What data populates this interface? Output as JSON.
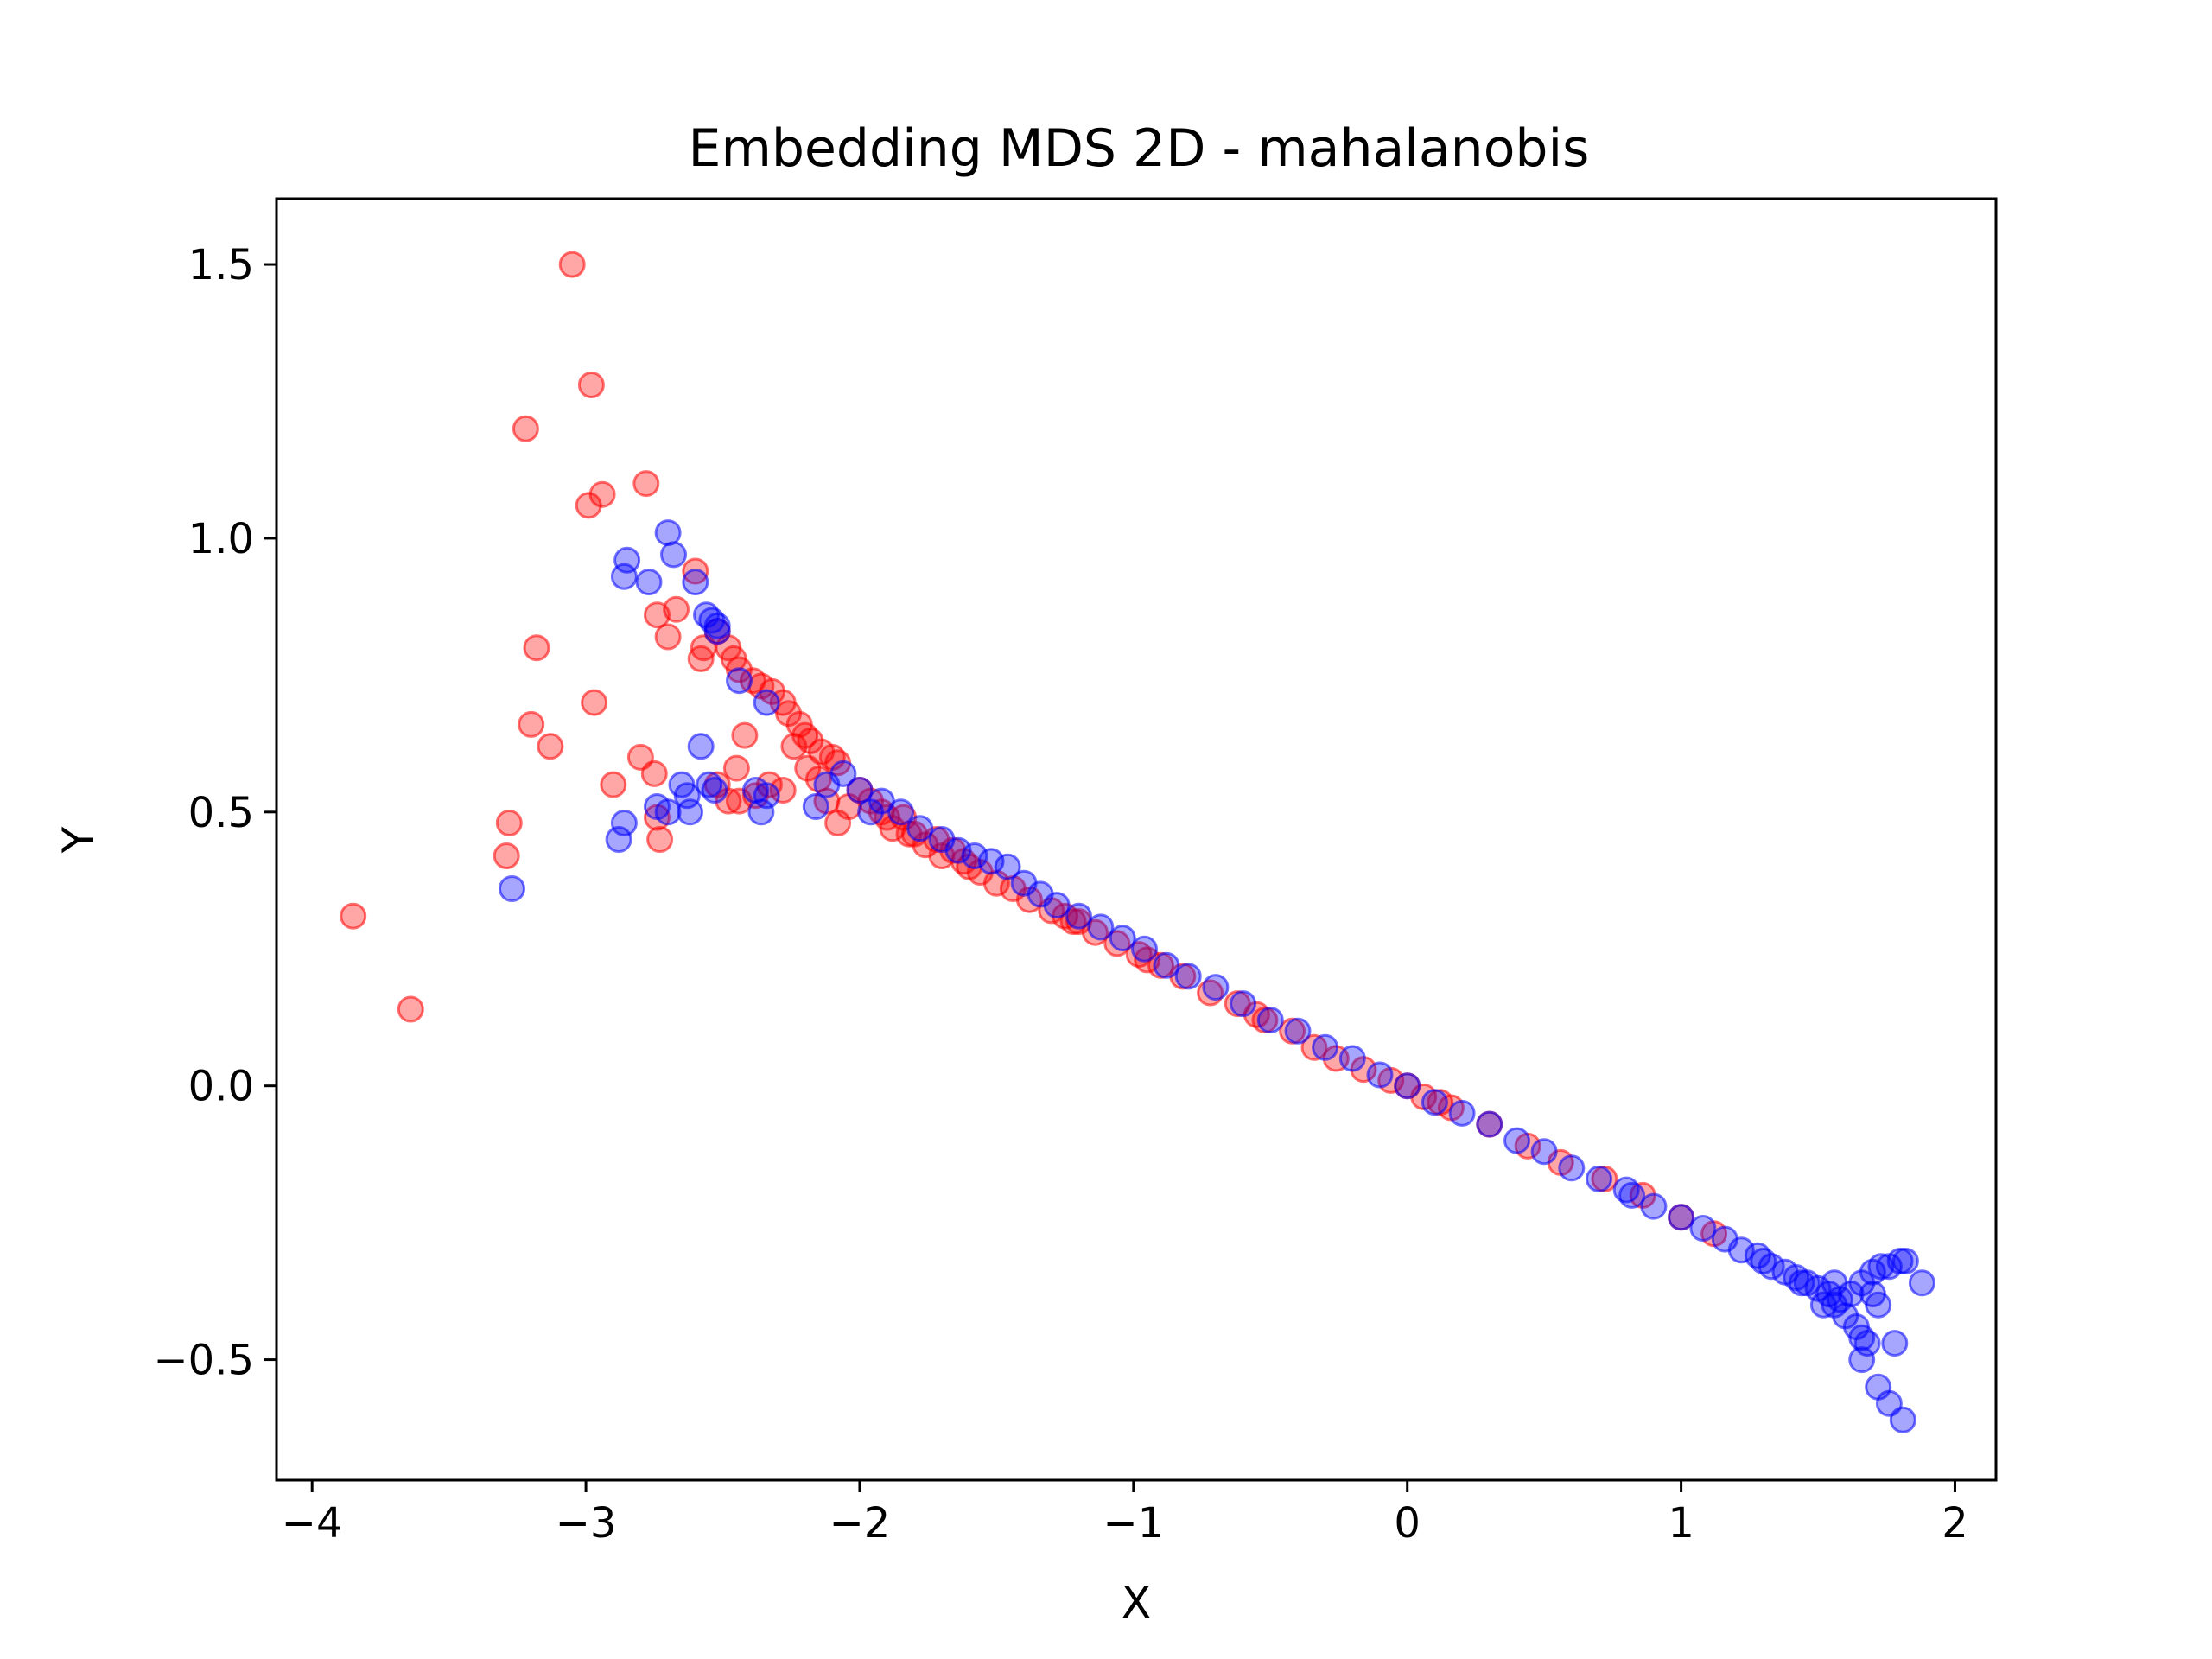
{
  "chart_data": {
    "type": "scatter",
    "title": "Embedding MDS 2D - mahalanobis",
    "xlabel": "X",
    "ylabel": "Y",
    "xlim": [
      -4.13,
      2.15
    ],
    "ylim": [
      -0.72,
      1.62
    ],
    "xticks": [
      -4,
      -3,
      -2,
      -1,
      0,
      1,
      2
    ],
    "yticks": [
      -0.5,
      0.0,
      0.5,
      1.0,
      1.5
    ],
    "xtick_labels": [
      "−4",
      "−3",
      "−2",
      "−1",
      "0",
      "1",
      "2"
    ],
    "ytick_labels": [
      "−0.5",
      "0.0",
      "0.5",
      "1.0",
      "1.5"
    ],
    "grid": false,
    "marker_alpha": 0.35,
    "series": [
      {
        "name": "red",
        "color": "#ff0000",
        "points": [
          [
            -3.05,
            1.5
          ],
          [
            -2.98,
            1.28
          ],
          [
            -3.22,
            1.2
          ],
          [
            -2.78,
            1.1
          ],
          [
            -2.94,
            1.08
          ],
          [
            -2.99,
            1.06
          ],
          [
            -3.18,
            0.8
          ],
          [
            -3.2,
            0.66
          ],
          [
            -3.13,
            0.62
          ],
          [
            -2.97,
            0.7
          ],
          [
            -2.9,
            0.55
          ],
          [
            -3.28,
            0.48
          ],
          [
            -3.29,
            0.42
          ],
          [
            -3.85,
            0.31
          ],
          [
            -3.64,
            0.14
          ],
          [
            -2.8,
            0.6
          ],
          [
            -2.75,
            0.57
          ],
          [
            -2.74,
            0.49
          ],
          [
            -2.73,
            0.45
          ],
          [
            -2.74,
            0.86
          ],
          [
            -2.7,
            0.82
          ],
          [
            -2.67,
            0.87
          ],
          [
            -2.6,
            0.94
          ],
          [
            -2.57,
            0.8
          ],
          [
            -2.58,
            0.78
          ],
          [
            -2.52,
            0.83
          ],
          [
            -2.48,
            0.8
          ],
          [
            -2.46,
            0.78
          ],
          [
            -2.44,
            0.76
          ],
          [
            -2.39,
            0.74
          ],
          [
            -2.36,
            0.73
          ],
          [
            -2.32,
            0.72
          ],
          [
            -2.28,
            0.7
          ],
          [
            -2.26,
            0.68
          ],
          [
            -2.22,
            0.66
          ],
          [
            -2.2,
            0.64
          ],
          [
            -2.18,
            0.63
          ],
          [
            -2.14,
            0.61
          ],
          [
            -2.1,
            0.6
          ],
          [
            -2.08,
            0.59
          ],
          [
            -2.42,
            0.64
          ],
          [
            -2.45,
            0.58
          ],
          [
            -2.48,
            0.52
          ],
          [
            -2.52,
            0.55
          ],
          [
            -2.44,
            0.52
          ],
          [
            -2.38,
            0.53
          ],
          [
            -2.33,
            0.55
          ],
          [
            -2.28,
            0.54
          ],
          [
            -2.24,
            0.62
          ],
          [
            -2.19,
            0.58
          ],
          [
            -2.15,
            0.56
          ],
          [
            -2.12,
            0.52
          ],
          [
            -2.08,
            0.48
          ],
          [
            -2.04,
            0.51
          ],
          [
            -2.0,
            0.54
          ],
          [
            -1.96,
            0.52
          ],
          [
            -1.92,
            0.5
          ],
          [
            -1.88,
            0.47
          ],
          [
            -1.84,
            0.49
          ],
          [
            -1.8,
            0.46
          ],
          [
            -1.76,
            0.44
          ],
          [
            -1.7,
            0.42
          ],
          [
            -1.66,
            0.43
          ],
          [
            -1.62,
            0.41
          ],
          [
            -1.56,
            0.39
          ],
          [
            -1.5,
            0.37
          ],
          [
            -1.44,
            0.36
          ],
          [
            -1.38,
            0.34
          ],
          [
            -1.3,
            0.32
          ],
          [
            -1.22,
            0.3
          ],
          [
            -1.14,
            0.28
          ],
          [
            -1.06,
            0.26
          ],
          [
            -0.98,
            0.24
          ],
          [
            -0.9,
            0.22
          ],
          [
            -0.82,
            0.2
          ],
          [
            -0.72,
            0.17
          ],
          [
            -0.62,
            0.15
          ],
          [
            -0.52,
            0.12
          ],
          [
            -0.42,
            0.1
          ],
          [
            -0.34,
            0.07
          ],
          [
            -0.26,
            0.05
          ],
          [
            -0.16,
            0.03
          ],
          [
            -0.06,
            0.01
          ],
          [
            0.06,
            -0.02
          ],
          [
            0.16,
            -0.04
          ],
          [
            0.3,
            -0.07
          ],
          [
            0.44,
            -0.11
          ],
          [
            0.56,
            -0.14
          ],
          [
            0.72,
            -0.17
          ],
          [
            0.86,
            -0.2
          ],
          [
            1.0,
            -0.24
          ],
          [
            1.12,
            -0.27
          ],
          [
            -1.25,
            0.31
          ],
          [
            -0.95,
            0.23
          ],
          [
            -0.55,
            0.13
          ],
          [
            0.0,
            0.0
          ],
          [
            0.12,
            -0.03
          ],
          [
            -1.6,
            0.4
          ],
          [
            -1.2,
            0.3
          ],
          [
            -1.82,
            0.46
          ],
          [
            -1.9,
            0.49
          ],
          [
            -1.72,
            0.45
          ]
        ]
      },
      {
        "name": "blue",
        "color": "#0000ff",
        "points": [
          [
            -2.7,
            1.01
          ],
          [
            -2.68,
            0.97
          ],
          [
            -2.85,
            0.96
          ],
          [
            -2.86,
            0.93
          ],
          [
            -2.77,
            0.92
          ],
          [
            -2.6,
            0.92
          ],
          [
            -2.56,
            0.86
          ],
          [
            -2.54,
            0.85
          ],
          [
            -2.52,
            0.84
          ],
          [
            -2.52,
            0.83
          ],
          [
            -2.44,
            0.74
          ],
          [
            -2.34,
            0.7
          ],
          [
            -2.58,
            0.62
          ],
          [
            -2.65,
            0.55
          ],
          [
            -2.63,
            0.53
          ],
          [
            -2.55,
            0.55
          ],
          [
            -2.53,
            0.54
          ],
          [
            -2.74,
            0.51
          ],
          [
            -2.7,
            0.5
          ],
          [
            -2.62,
            0.5
          ],
          [
            -2.86,
            0.48
          ],
          [
            -2.88,
            0.45
          ],
          [
            -3.27,
            0.36
          ],
          [
            -2.36,
            0.5
          ],
          [
            -2.34,
            0.53
          ],
          [
            -2.38,
            0.54
          ],
          [
            -2.16,
            0.51
          ],
          [
            -2.12,
            0.55
          ],
          [
            -2.06,
            0.57
          ],
          [
            -2.0,
            0.54
          ],
          [
            -1.96,
            0.5
          ],
          [
            -1.92,
            0.52
          ],
          [
            -1.85,
            0.5
          ],
          [
            -1.78,
            0.47
          ],
          [
            -1.7,
            0.45
          ],
          [
            -1.64,
            0.43
          ],
          [
            -1.58,
            0.42
          ],
          [
            -1.52,
            0.41
          ],
          [
            -1.46,
            0.4
          ],
          [
            -1.4,
            0.37
          ],
          [
            -1.34,
            0.35
          ],
          [
            -1.28,
            0.33
          ],
          [
            -1.2,
            0.31
          ],
          [
            -1.12,
            0.29
          ],
          [
            -1.04,
            0.27
          ],
          [
            -0.96,
            0.25
          ],
          [
            -0.88,
            0.22
          ],
          [
            -0.8,
            0.2
          ],
          [
            -0.7,
            0.18
          ],
          [
            -0.6,
            0.15
          ],
          [
            -0.5,
            0.12
          ],
          [
            -0.4,
            0.1
          ],
          [
            -0.3,
            0.07
          ],
          [
            -0.2,
            0.05
          ],
          [
            -0.1,
            0.02
          ],
          [
            0.0,
            0.0
          ],
          [
            0.1,
            -0.03
          ],
          [
            0.2,
            -0.05
          ],
          [
            0.3,
            -0.07
          ],
          [
            0.4,
            -0.1
          ],
          [
            0.5,
            -0.12
          ],
          [
            0.6,
            -0.15
          ],
          [
            0.7,
            -0.17
          ],
          [
            0.8,
            -0.19
          ],
          [
            0.9,
            -0.22
          ],
          [
            1.0,
            -0.24
          ],
          [
            1.08,
            -0.26
          ],
          [
            1.16,
            -0.28
          ],
          [
            1.22,
            -0.3
          ],
          [
            1.28,
            -0.31
          ],
          [
            1.33,
            -0.33
          ],
          [
            1.38,
            -0.34
          ],
          [
            1.42,
            -0.35
          ],
          [
            1.46,
            -0.36
          ],
          [
            1.5,
            -0.37
          ],
          [
            1.54,
            -0.38
          ],
          [
            1.58,
            -0.39
          ],
          [
            1.62,
            -0.38
          ],
          [
            1.66,
            -0.36
          ],
          [
            1.7,
            -0.34
          ],
          [
            1.73,
            -0.33
          ],
          [
            1.76,
            -0.33
          ],
          [
            1.8,
            -0.32
          ],
          [
            1.82,
            -0.32
          ],
          [
            1.88,
            -0.36
          ],
          [
            1.56,
            -0.4
          ],
          [
            1.6,
            -0.42
          ],
          [
            1.64,
            -0.44
          ],
          [
            1.66,
            -0.46
          ],
          [
            1.68,
            -0.47
          ],
          [
            1.72,
            -0.4
          ],
          [
            1.7,
            -0.38
          ],
          [
            1.78,
            -0.47
          ],
          [
            1.66,
            -0.5
          ],
          [
            1.72,
            -0.55
          ],
          [
            1.76,
            -0.58
          ],
          [
            1.81,
            -0.61
          ],
          [
            1.3,
            -0.32
          ],
          [
            1.44,
            -0.36
          ],
          [
            1.52,
            -0.4
          ],
          [
            1.56,
            -0.36
          ],
          [
            0.82,
            -0.2
          ]
        ]
      }
    ]
  }
}
